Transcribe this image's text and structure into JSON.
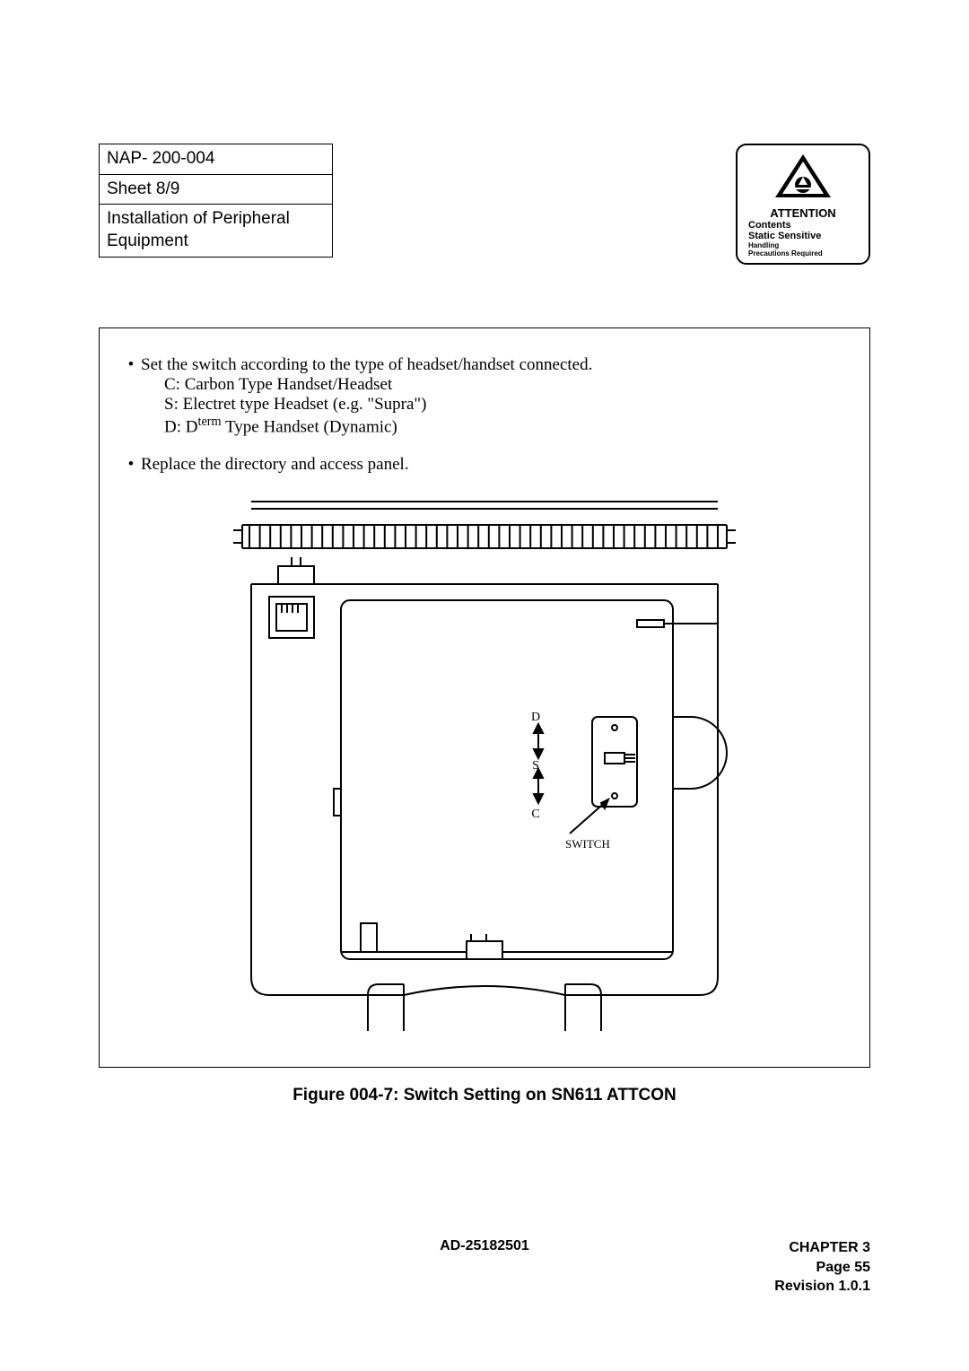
{
  "info_table": {
    "row1": "NAP- 200-004",
    "row2": "Sheet 8/9",
    "row3": "Installation of Peripheral Equipment"
  },
  "attention": {
    "title": "ATTENTION",
    "line1": "Contents",
    "line2": "Static Sensitive",
    "line3": "Handling",
    "line4": "Precautions Required"
  },
  "content": {
    "bullet1_main": "Set the switch according to the type of headset/handset connected.",
    "bullet1_c": "C:   Carbon Type Handset/Headset",
    "bullet1_s": "S:   Electret type Headset (e.g. \"Supra\")",
    "bullet1_d_pre": "D:   D",
    "bullet1_d_sup": "term",
    "bullet1_d_post": " Type Handset (Dynamic)",
    "bullet2": "Replace the directory and access panel."
  },
  "diagram": {
    "label_d": "D",
    "label_s": "S",
    "label_c": "C",
    "label_switch": "SWITCH",
    "fontsize": 12,
    "stroke": "#000000",
    "stroke_width": 2,
    "fill": "#ffffff"
  },
  "figure_caption": "Figure 004-7:  Switch Setting on SN611 ATTCON",
  "footer": {
    "center": "AD-25182501",
    "chapter": "CHAPTER 3",
    "page": "Page 55",
    "revision": "Revision 1.0.1"
  }
}
